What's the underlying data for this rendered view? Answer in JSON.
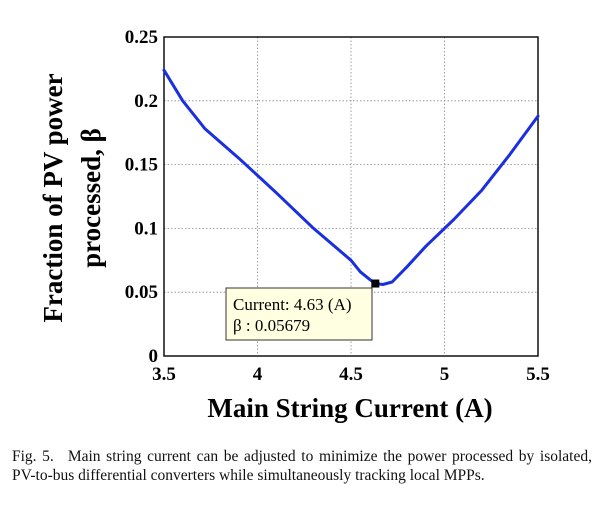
{
  "chart_data": {
    "type": "line",
    "xlabel": "Main String Current (A)",
    "ylabel_line1": "Fraction of PV power",
    "ylabel_line2": "processed, β",
    "xlim": [
      3.5,
      5.5
    ],
    "ylim": [
      0,
      0.25
    ],
    "x_ticks": [
      3.5,
      4,
      4.5,
      5,
      5.5
    ],
    "x_tick_labels": [
      "3.5",
      "4",
      "4.5",
      "5",
      "5.5"
    ],
    "y_ticks": [
      0,
      0.05,
      0.1,
      0.15,
      0.2,
      0.25
    ],
    "y_tick_labels": [
      "0",
      "0.05",
      "0.1",
      "0.15",
      "0.2",
      "0.25"
    ],
    "grid": true,
    "series": [
      {
        "color": "#1a2fe0",
        "x": [
          3.5,
          3.6,
          3.72,
          3.9,
          4.1,
          4.3,
          4.5,
          4.55,
          4.6,
          4.63,
          4.67,
          4.72,
          4.8,
          4.9,
          5.05,
          5.2,
          5.35,
          5.5
        ],
        "y": [
          0.224,
          0.2,
          0.178,
          0.155,
          0.128,
          0.1,
          0.075,
          0.066,
          0.06,
          0.05679,
          0.056,
          0.058,
          0.07,
          0.086,
          0.107,
          0.13,
          0.158,
          0.188
        ]
      }
    ],
    "marker": {
      "x": 4.63,
      "y": 0.05679
    },
    "datatip": {
      "line1": "Current: 4.63 (A)",
      "line2": "β : 0.05679",
      "bg": "#ffffe1"
    }
  },
  "caption": {
    "label": "Fig. 5.",
    "text": "Main string current can be adjusted to minimize the power processed by isolated, PV-to-bus differential converters while simultaneously tracking local MPPs."
  }
}
